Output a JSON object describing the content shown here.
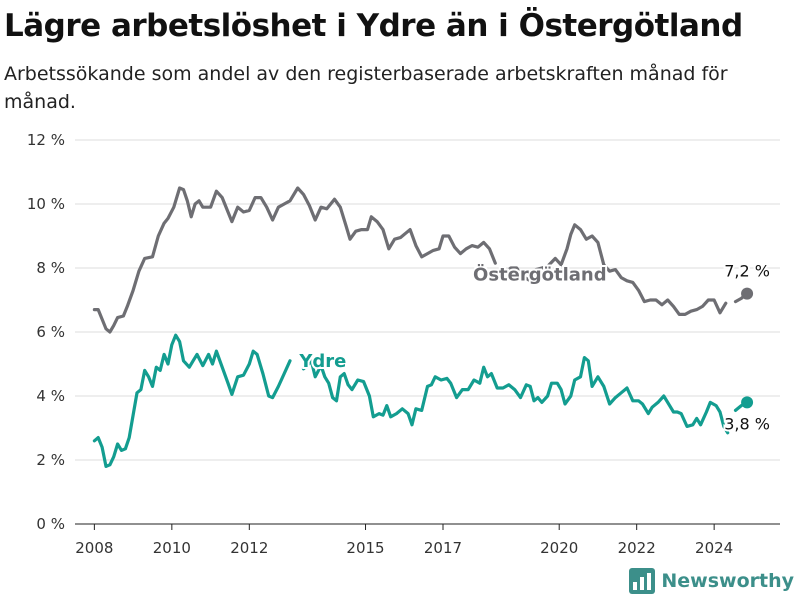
{
  "header": {
    "title": "Lägre arbetslöshet i Ydre än i Östergötland",
    "subtitle": "Arbetssökande som andel av den registerbaserade arbetskraften månad för månad."
  },
  "brand": {
    "name": "Newsworthy",
    "icon": "newsworthy-logo-icon"
  },
  "colors": {
    "ostergotland": "#6e6e73",
    "ydre": "#139d90",
    "grid": "#dddddd"
  },
  "chart_data": {
    "type": "line",
    "title": "Lägre arbetslöshet i Ydre än i Östergötland",
    "subtitle": "Arbetssökande som andel av den registerbaserade arbetskraften månad för månad.",
    "xlabel": "",
    "ylabel": "",
    "xlim": [
      2007.5,
      2025.7
    ],
    "ylim": [
      0,
      12
    ],
    "y_ticks": [
      0,
      2,
      4,
      6,
      8,
      10,
      12
    ],
    "y_tick_labels": [
      "0 %",
      "2 %",
      "4 %",
      "6 %",
      "8 %",
      "10 %",
      "12 %"
    ],
    "x_ticks": [
      2008,
      2010,
      2012,
      2015,
      2017,
      2020,
      2022,
      2024
    ],
    "x_tick_labels": [
      "2008",
      "2010",
      "2012",
      "2015",
      "2017",
      "2020",
      "2022",
      "2024"
    ],
    "grid": true,
    "legend": "direct labels on lines",
    "series": [
      {
        "name": "Östergötland",
        "color": "#6e6e73",
        "end_label": "7,2 %",
        "points": [
          [
            2008.0,
            6.7
          ],
          [
            2008.1,
            6.7
          ],
          [
            2008.2,
            6.4
          ],
          [
            2008.3,
            6.1
          ],
          [
            2008.4,
            6.0
          ],
          [
            2008.5,
            6.2
          ],
          [
            2008.6,
            6.45
          ],
          [
            2008.75,
            6.5
          ],
          [
            2008.85,
            6.8
          ],
          [
            2009.0,
            7.3
          ],
          [
            2009.15,
            7.9
          ],
          [
            2009.3,
            8.3
          ],
          [
            2009.5,
            8.35
          ],
          [
            2009.65,
            9.0
          ],
          [
            2009.8,
            9.4
          ],
          [
            2009.9,
            9.55
          ],
          [
            2010.05,
            9.9
          ],
          [
            2010.2,
            10.5
          ],
          [
            2010.3,
            10.45
          ],
          [
            2010.4,
            10.1
          ],
          [
            2010.5,
            9.6
          ],
          [
            2010.6,
            10.0
          ],
          [
            2010.7,
            10.1
          ],
          [
            2010.8,
            9.9
          ],
          [
            2011.0,
            9.9
          ],
          [
            2011.15,
            10.4
          ],
          [
            2011.3,
            10.2
          ],
          [
            2011.45,
            9.75
          ],
          [
            2011.55,
            9.45
          ],
          [
            2011.7,
            9.9
          ],
          [
            2011.85,
            9.75
          ],
          [
            2012.0,
            9.8
          ],
          [
            2012.15,
            10.2
          ],
          [
            2012.3,
            10.2
          ],
          [
            2012.45,
            9.9
          ],
          [
            2012.6,
            9.5
          ],
          [
            2012.75,
            9.9
          ],
          [
            2012.9,
            10.0
          ],
          [
            2013.05,
            10.1
          ],
          [
            2013.25,
            10.5
          ],
          [
            2013.4,
            10.3
          ],
          [
            2013.55,
            9.95
          ],
          [
            2013.7,
            9.5
          ],
          [
            2013.85,
            9.9
          ],
          [
            2014.0,
            9.85
          ],
          [
            2014.2,
            10.15
          ],
          [
            2014.35,
            9.9
          ],
          [
            2014.5,
            9.3
          ],
          [
            2014.6,
            8.9
          ],
          [
            2014.75,
            9.15
          ],
          [
            2014.9,
            9.2
          ],
          [
            2015.05,
            9.2
          ],
          [
            2015.15,
            9.6
          ],
          [
            2015.3,
            9.45
          ],
          [
            2015.45,
            9.2
          ],
          [
            2015.6,
            8.6
          ],
          [
            2015.75,
            8.9
          ],
          [
            2015.9,
            8.95
          ],
          [
            2016.05,
            9.1
          ],
          [
            2016.15,
            9.2
          ],
          [
            2016.3,
            8.7
          ],
          [
            2016.45,
            8.35
          ],
          [
            2016.6,
            8.45
          ],
          [
            2016.75,
            8.55
          ],
          [
            2016.9,
            8.6
          ],
          [
            2017.0,
            9.0
          ],
          [
            2017.15,
            9.0
          ],
          [
            2017.3,
            8.65
          ],
          [
            2017.45,
            8.45
          ],
          [
            2017.6,
            8.6
          ],
          [
            2017.75,
            8.7
          ],
          [
            2017.9,
            8.65
          ],
          [
            2018.05,
            8.8
          ],
          [
            2018.2,
            8.6
          ],
          [
            2018.35,
            8.15
          ]
        ],
        "points_b": [
          [
            2018.6,
            7.85
          ],
          [
            2018.75,
            8.0
          ],
          [
            2018.9,
            8.0
          ],
          [
            2019.05,
            7.75
          ],
          [
            2019.25,
            7.6
          ],
          [
            2019.4,
            7.95
          ],
          [
            2019.55,
            8.0
          ],
          [
            2019.7,
            8.05
          ],
          [
            2019.9,
            8.3
          ],
          [
            2020.05,
            8.1
          ],
          [
            2020.2,
            8.6
          ],
          [
            2020.3,
            9.05
          ],
          [
            2020.4,
            9.35
          ],
          [
            2020.55,
            9.2
          ],
          [
            2020.7,
            8.9
          ],
          [
            2020.85,
            9.0
          ],
          [
            2021.0,
            8.8
          ],
          [
            2021.15,
            8.1
          ],
          [
            2021.3,
            7.9
          ],
          [
            2021.45,
            7.95
          ],
          [
            2021.6,
            7.7
          ],
          [
            2021.75,
            7.6
          ],
          [
            2021.9,
            7.55
          ],
          [
            2022.05,
            7.3
          ],
          [
            2022.2,
            6.95
          ],
          [
            2022.35,
            7.0
          ],
          [
            2022.5,
            7.0
          ],
          [
            2022.65,
            6.85
          ],
          [
            2022.8,
            7.0
          ],
          [
            2022.95,
            6.8
          ],
          [
            2023.1,
            6.55
          ],
          [
            2023.25,
            6.55
          ],
          [
            2023.4,
            6.65
          ],
          [
            2023.55,
            6.7
          ],
          [
            2023.7,
            6.8
          ],
          [
            2023.85,
            7.0
          ],
          [
            2024.0,
            7.0
          ],
          [
            2024.15,
            6.6
          ],
          [
            2024.3,
            6.9
          ]
        ],
        "points_c": [
          [
            2024.55,
            6.95
          ],
          [
            2024.7,
            7.05
          ],
          [
            2024.85,
            7.2
          ]
        ]
      },
      {
        "name": "Ydre",
        "color": "#139d90",
        "end_label": "3,8 %",
        "points": [
          [
            2008.0,
            2.6
          ],
          [
            2008.1,
            2.7
          ],
          [
            2008.2,
            2.4
          ],
          [
            2008.3,
            1.8
          ],
          [
            2008.4,
            1.85
          ],
          [
            2008.5,
            2.1
          ],
          [
            2008.6,
            2.5
          ],
          [
            2008.7,
            2.3
          ],
          [
            2008.8,
            2.35
          ],
          [
            2008.9,
            2.7
          ],
          [
            2009.0,
            3.4
          ],
          [
            2009.1,
            4.1
          ],
          [
            2009.2,
            4.2
          ],
          [
            2009.3,
            4.8
          ],
          [
            2009.4,
            4.6
          ],
          [
            2009.5,
            4.3
          ],
          [
            2009.6,
            4.9
          ],
          [
            2009.7,
            4.8
          ],
          [
            2009.8,
            5.3
          ],
          [
            2009.9,
            5.0
          ],
          [
            2010.0,
            5.6
          ],
          [
            2010.1,
            5.9
          ],
          [
            2010.2,
            5.7
          ],
          [
            2010.3,
            5.1
          ],
          [
            2010.45,
            4.9
          ],
          [
            2010.55,
            5.1
          ],
          [
            2010.65,
            5.3
          ],
          [
            2010.8,
            4.95
          ],
          [
            2010.95,
            5.3
          ],
          [
            2011.05,
            5.0
          ],
          [
            2011.15,
            5.4
          ],
          [
            2011.3,
            4.9
          ],
          [
            2011.45,
            4.4
          ],
          [
            2011.55,
            4.05
          ],
          [
            2011.7,
            4.6
          ],
          [
            2011.85,
            4.65
          ],
          [
            2012.0,
            5.0
          ],
          [
            2012.1,
            5.4
          ],
          [
            2012.2,
            5.3
          ],
          [
            2012.35,
            4.7
          ],
          [
            2012.5,
            4.0
          ],
          [
            2012.6,
            3.95
          ],
          [
            2012.75,
            4.3
          ],
          [
            2012.9,
            4.7
          ],
          [
            2013.05,
            5.1
          ]
        ],
        "points_b": [
          [
            2013.4,
            4.85
          ],
          [
            2013.5,
            4.95
          ],
          [
            2013.6,
            5.1
          ],
          [
            2013.7,
            4.6
          ],
          [
            2013.85,
            4.95
          ],
          [
            2013.95,
            4.6
          ],
          [
            2014.05,
            4.4
          ],
          [
            2014.15,
            3.95
          ],
          [
            2014.25,
            3.85
          ],
          [
            2014.35,
            4.6
          ],
          [
            2014.45,
            4.7
          ],
          [
            2014.55,
            4.35
          ],
          [
            2014.65,
            4.2
          ],
          [
            2014.8,
            4.5
          ],
          [
            2014.95,
            4.45
          ],
          [
            2015.1,
            4.0
          ],
          [
            2015.2,
            3.35
          ],
          [
            2015.35,
            3.45
          ],
          [
            2015.45,
            3.4
          ],
          [
            2015.55,
            3.7
          ],
          [
            2015.65,
            3.35
          ],
          [
            2015.8,
            3.45
          ],
          [
            2015.95,
            3.6
          ],
          [
            2016.1,
            3.45
          ],
          [
            2016.2,
            3.1
          ],
          [
            2016.3,
            3.6
          ],
          [
            2016.45,
            3.55
          ],
          [
            2016.6,
            4.3
          ],
          [
            2016.7,
            4.35
          ],
          [
            2016.8,
            4.6
          ],
          [
            2016.95,
            4.5
          ],
          [
            2017.1,
            4.55
          ],
          [
            2017.2,
            4.4
          ],
          [
            2017.35,
            3.95
          ],
          [
            2017.5,
            4.2
          ],
          [
            2017.65,
            4.2
          ],
          [
            2017.8,
            4.5
          ],
          [
            2017.95,
            4.4
          ],
          [
            2018.05,
            4.9
          ],
          [
            2018.15,
            4.6
          ],
          [
            2018.25,
            4.7
          ],
          [
            2018.4,
            4.25
          ],
          [
            2018.55,
            4.25
          ],
          [
            2018.7,
            4.35
          ],
          [
            2018.85,
            4.2
          ],
          [
            2019.0,
            3.95
          ],
          [
            2019.15,
            4.35
          ],
          [
            2019.25,
            4.3
          ],
          [
            2019.35,
            3.85
          ],
          [
            2019.45,
            3.95
          ],
          [
            2019.55,
            3.8
          ],
          [
            2019.7,
            4.0
          ],
          [
            2019.8,
            4.4
          ],
          [
            2019.95,
            4.4
          ],
          [
            2020.05,
            4.2
          ],
          [
            2020.15,
            3.75
          ],
          [
            2020.3,
            4.0
          ],
          [
            2020.4,
            4.5
          ],
          [
            2020.55,
            4.6
          ],
          [
            2020.65,
            5.2
          ],
          [
            2020.75,
            5.1
          ],
          [
            2020.85,
            4.3
          ],
          [
            2021.0,
            4.6
          ],
          [
            2021.15,
            4.3
          ],
          [
            2021.3,
            3.75
          ],
          [
            2021.45,
            3.95
          ],
          [
            2021.6,
            4.1
          ],
          [
            2021.75,
            4.25
          ],
          [
            2021.9,
            3.85
          ],
          [
            2022.05,
            3.85
          ],
          [
            2022.15,
            3.75
          ],
          [
            2022.3,
            3.45
          ],
          [
            2022.4,
            3.65
          ],
          [
            2022.55,
            3.8
          ],
          [
            2022.7,
            4.0
          ],
          [
            2022.85,
            3.7
          ],
          [
            2022.95,
            3.5
          ],
          [
            2023.05,
            3.5
          ],
          [
            2023.15,
            3.45
          ],
          [
            2023.3,
            3.05
          ],
          [
            2023.45,
            3.1
          ],
          [
            2023.55,
            3.3
          ],
          [
            2023.65,
            3.1
          ],
          [
            2023.8,
            3.5
          ],
          [
            2023.9,
            3.8
          ],
          [
            2024.05,
            3.7
          ],
          [
            2024.15,
            3.5
          ],
          [
            2024.25,
            3.05
          ],
          [
            2024.35,
            2.85
          ]
        ],
        "points_c": [
          [
            2024.55,
            3.55
          ],
          [
            2024.7,
            3.7
          ],
          [
            2024.85,
            3.8
          ]
        ]
      }
    ],
    "annotations": [
      {
        "text": "Östergötland",
        "series": "Östergötland",
        "x": 2019.5,
        "y": 7.8
      },
      {
        "text": "Ydre",
        "series": "Ydre",
        "x": 2013.9,
        "y": 5.1
      },
      {
        "text": "7,2 %",
        "series": "Östergötland",
        "x": 2024.85,
        "y": 7.2
      },
      {
        "text": "3,8 %",
        "series": "Ydre",
        "x": 2024.85,
        "y": 3.8
      }
    ]
  }
}
